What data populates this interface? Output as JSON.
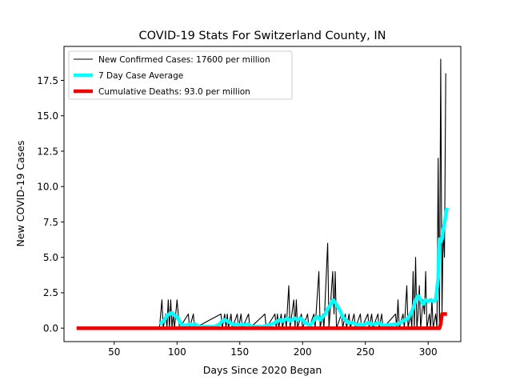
{
  "chart_data": {
    "type": "line",
    "title": "COVID-19 Stats For Switzerland County, IN",
    "xlabel": "Days Since 2020 Began",
    "ylabel": "New COVID-19 Cases",
    "xlim": [
      10,
      326
    ],
    "ylim": [
      -0.95,
      19.9
    ],
    "xticks": [
      50,
      100,
      150,
      200,
      250,
      300
    ],
    "yticks": [
      0.0,
      2.5,
      5.0,
      7.5,
      10.0,
      12.5,
      15.0,
      17.5
    ],
    "ytick_labels": [
      "0.0",
      "2.5",
      "5.0",
      "7.5",
      "10.0",
      "12.5",
      "15.0",
      "17.5"
    ],
    "grid": false,
    "legend_position": "top-left",
    "series": [
      {
        "name": "New Confirmed Cases: 17600 per million",
        "color": "#000000",
        "points": [
          [
            86,
            0
          ],
          [
            88,
            2
          ],
          [
            89,
            0
          ],
          [
            91,
            1
          ],
          [
            92,
            0
          ],
          [
            93,
            2
          ],
          [
            94,
            0
          ],
          [
            95,
            2
          ],
          [
            96,
            0
          ],
          [
            97,
            1
          ],
          [
            98,
            0
          ],
          [
            100,
            2
          ],
          [
            101,
            1
          ],
          [
            102,
            0
          ],
          [
            109,
            1
          ],
          [
            110,
            0
          ],
          [
            113,
            1
          ],
          [
            114,
            0
          ],
          [
            135,
            1
          ],
          [
            136,
            0
          ],
          [
            138,
            1
          ],
          [
            139,
            0
          ],
          [
            140,
            1
          ],
          [
            141,
            0
          ],
          [
            143,
            1
          ],
          [
            144,
            0
          ],
          [
            148,
            1
          ],
          [
            149,
            0
          ],
          [
            151,
            1
          ],
          [
            152,
            0
          ],
          [
            157,
            1
          ],
          [
            158,
            0
          ],
          [
            170,
            1
          ],
          [
            171,
            0
          ],
          [
            178,
            1
          ],
          [
            179,
            0
          ],
          [
            180,
            1
          ],
          [
            181,
            0
          ],
          [
            183,
            1
          ],
          [
            184,
            0
          ],
          [
            186,
            1
          ],
          [
            187,
            0
          ],
          [
            189,
            3
          ],
          [
            190,
            0
          ],
          [
            193,
            2
          ],
          [
            194,
            0
          ],
          [
            195,
            2
          ],
          [
            196,
            0
          ],
          [
            199,
            1
          ],
          [
            200,
            0
          ],
          [
            204,
            1
          ],
          [
            205,
            0
          ],
          [
            209,
            1
          ],
          [
            210,
            0
          ],
          [
            213,
            4
          ],
          [
            214,
            0
          ],
          [
            216,
            1
          ],
          [
            217,
            0
          ],
          [
            220,
            6
          ],
          [
            221,
            0
          ],
          [
            224,
            4
          ],
          [
            225,
            1
          ],
          [
            226,
            4
          ],
          [
            227,
            0
          ],
          [
            231,
            1
          ],
          [
            232,
            0
          ],
          [
            234,
            1
          ],
          [
            235,
            0
          ],
          [
            237,
            1
          ],
          [
            238,
            0
          ],
          [
            241,
            1
          ],
          [
            242,
            0
          ],
          [
            246,
            1
          ],
          [
            247,
            0
          ],
          [
            252,
            1
          ],
          [
            253,
            0
          ],
          [
            255,
            1
          ],
          [
            256,
            0
          ],
          [
            260,
            1
          ],
          [
            261,
            0
          ],
          [
            263,
            1
          ],
          [
            264,
            0
          ],
          [
            274,
            1
          ],
          [
            275,
            0
          ],
          [
            276,
            2
          ],
          [
            277,
            0
          ],
          [
            280,
            1
          ],
          [
            281,
            0
          ],
          [
            283,
            3
          ],
          [
            284,
            0
          ],
          [
            286,
            1
          ],
          [
            287,
            0
          ],
          [
            288,
            4
          ],
          [
            289,
            0
          ],
          [
            290,
            5
          ],
          [
            291,
            0
          ],
          [
            292,
            1
          ],
          [
            293,
            3
          ],
          [
            294,
            0
          ],
          [
            296,
            2
          ],
          [
            297,
            1
          ],
          [
            298,
            4
          ],
          [
            299,
            0
          ],
          [
            301,
            1
          ],
          [
            302,
            0
          ],
          [
            303,
            2
          ],
          [
            304,
            0
          ],
          [
            306,
            1
          ],
          [
            307,
            0
          ],
          [
            308,
            12
          ],
          [
            309,
            0
          ],
          [
            310,
            19
          ],
          [
            311,
            1
          ],
          [
            312,
            7
          ],
          [
            313,
            5
          ],
          [
            314,
            18
          ]
        ]
      },
      {
        "name": "7 Day Case Average",
        "color": "#00ffff",
        "points": [
          [
            86,
            0.3
          ],
          [
            88,
            0.4
          ],
          [
            90,
            0.6
          ],
          [
            92,
            0.9
          ],
          [
            94,
            1.0
          ],
          [
            96,
            1.1
          ],
          [
            98,
            0.9
          ],
          [
            100,
            0.8
          ],
          [
            102,
            0.5
          ],
          [
            104,
            0.2
          ],
          [
            106,
            0.2
          ],
          [
            108,
            0.2
          ],
          [
            110,
            0.3
          ],
          [
            112,
            0.2
          ],
          [
            114,
            0.3
          ],
          [
            116,
            0.2
          ],
          [
            118,
            0.1
          ],
          [
            120,
            0.1
          ],
          [
            130,
            0.1
          ],
          [
            134,
            0.3
          ],
          [
            136,
            0.5
          ],
          [
            138,
            0.6
          ],
          [
            140,
            0.5
          ],
          [
            142,
            0.4
          ],
          [
            144,
            0.3
          ],
          [
            146,
            0.2
          ],
          [
            148,
            0.3
          ],
          [
            150,
            0.2
          ],
          [
            152,
            0.3
          ],
          [
            154,
            0.2
          ],
          [
            156,
            0.3
          ],
          [
            158,
            0.2
          ],
          [
            160,
            0.1
          ],
          [
            168,
            0.1
          ],
          [
            176,
            0.3
          ],
          [
            178,
            0.4
          ],
          [
            180,
            0.5
          ],
          [
            182,
            0.6
          ],
          [
            184,
            0.5
          ],
          [
            186,
            0.6
          ],
          [
            188,
            0.7
          ],
          [
            190,
            0.5
          ],
          [
            192,
            0.6
          ],
          [
            194,
            0.7
          ],
          [
            196,
            0.6
          ],
          [
            198,
            0.7
          ],
          [
            200,
            0.6
          ],
          [
            202,
            0.4
          ],
          [
            204,
            0.3
          ],
          [
            206,
            0.2
          ],
          [
            208,
            0.4
          ],
          [
            210,
            0.7
          ],
          [
            212,
            0.8
          ],
          [
            214,
            0.6
          ],
          [
            216,
            0.8
          ],
          [
            218,
            1.0
          ],
          [
            220,
            1.4
          ],
          [
            222,
            1.6
          ],
          [
            224,
            2.0
          ],
          [
            226,
            1.8
          ],
          [
            228,
            1.5
          ],
          [
            230,
            1.2
          ],
          [
            232,
            0.8
          ],
          [
            234,
            0.6
          ],
          [
            236,
            0.4
          ],
          [
            238,
            0.4
          ],
          [
            240,
            0.4
          ],
          [
            242,
            0.3
          ],
          [
            244,
            0.2
          ],
          [
            246,
            0.3
          ],
          [
            248,
            0.2
          ],
          [
            250,
            0.3
          ],
          [
            252,
            0.4
          ],
          [
            254,
            0.3
          ],
          [
            256,
            0.3
          ],
          [
            258,
            0.3
          ],
          [
            260,
            0.4
          ],
          [
            262,
            0.3
          ],
          [
            264,
            0.2
          ],
          [
            266,
            0.2
          ],
          [
            276,
            0.3
          ],
          [
            278,
            0.4
          ],
          [
            280,
            0.5
          ],
          [
            282,
            0.6
          ],
          [
            284,
            0.7
          ],
          [
            286,
            1.0
          ],
          [
            288,
            1.4
          ],
          [
            290,
            2.0
          ],
          [
            292,
            2.3
          ],
          [
            294,
            2.0
          ],
          [
            296,
            1.7
          ],
          [
            298,
            2.0
          ],
          [
            300,
            1.9
          ],
          [
            302,
            2.0
          ],
          [
            304,
            1.9
          ],
          [
            306,
            2.0
          ],
          [
            308,
            3.5
          ],
          [
            309,
            6.3
          ],
          [
            310,
            6.1
          ],
          [
            311,
            6.3
          ],
          [
            312,
            7.0
          ],
          [
            313,
            7.4
          ],
          [
            314,
            8.0
          ],
          [
            315,
            8.5
          ]
        ]
      },
      {
        "name": "Cumulative Deaths: 93.0 per million",
        "color": "#ee0000",
        "points": [
          [
            20,
            0
          ],
          [
            309,
            0
          ],
          [
            310,
            0.3
          ],
          [
            311,
            1
          ],
          [
            315,
            1
          ]
        ]
      }
    ]
  }
}
